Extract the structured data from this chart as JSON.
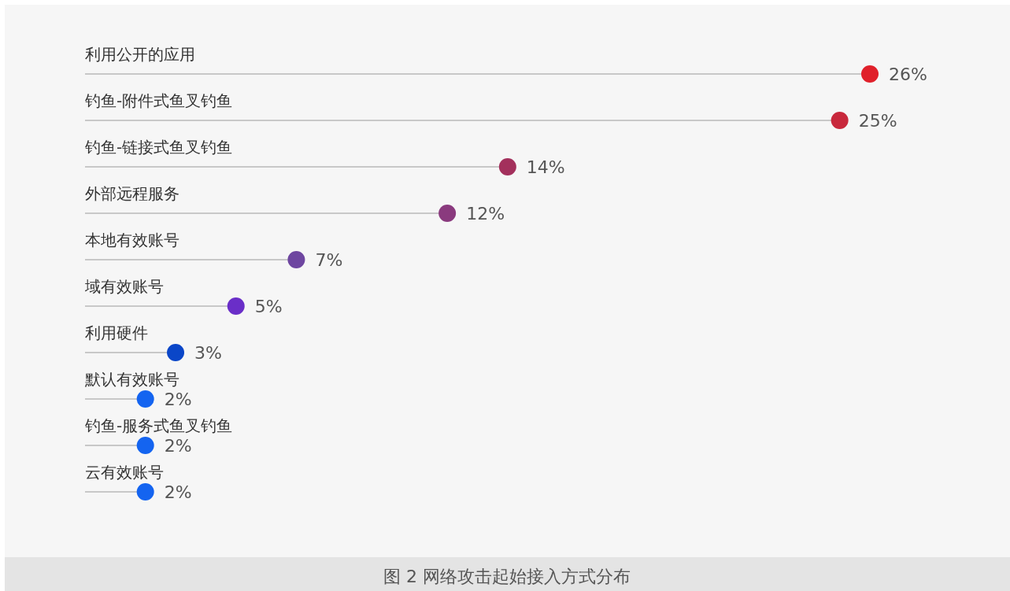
{
  "chart_data": {
    "type": "lollipop",
    "orientation": "horizontal",
    "title": "图 2 网络攻击起始接入方式分布",
    "categories": [
      "利用公开的应用",
      "钓鱼-附件式鱼叉钓鱼",
      "钓鱼-链接式鱼叉钓鱼",
      "外部远程服务",
      "本地有效账号",
      "域有效账号",
      "利用硬件",
      "默认有效账号",
      "钓鱼-服务式鱼叉钓鱼",
      "云有效账号"
    ],
    "values": [
      26,
      25,
      14,
      12,
      7,
      5,
      3,
      2,
      2,
      2
    ],
    "colors": [
      "#e0202a",
      "#c8283c",
      "#a3305c",
      "#8a3a7e",
      "#6e46a0",
      "#6a2ec8",
      "#0a46c8",
      "#1464f0",
      "#1464f0",
      "#1464f0"
    ],
    "value_labels": [
      "26%",
      "25%",
      "14%",
      "12%",
      "7%",
      "5%",
      "3%",
      "2%",
      "2%",
      "2%"
    ]
  }
}
